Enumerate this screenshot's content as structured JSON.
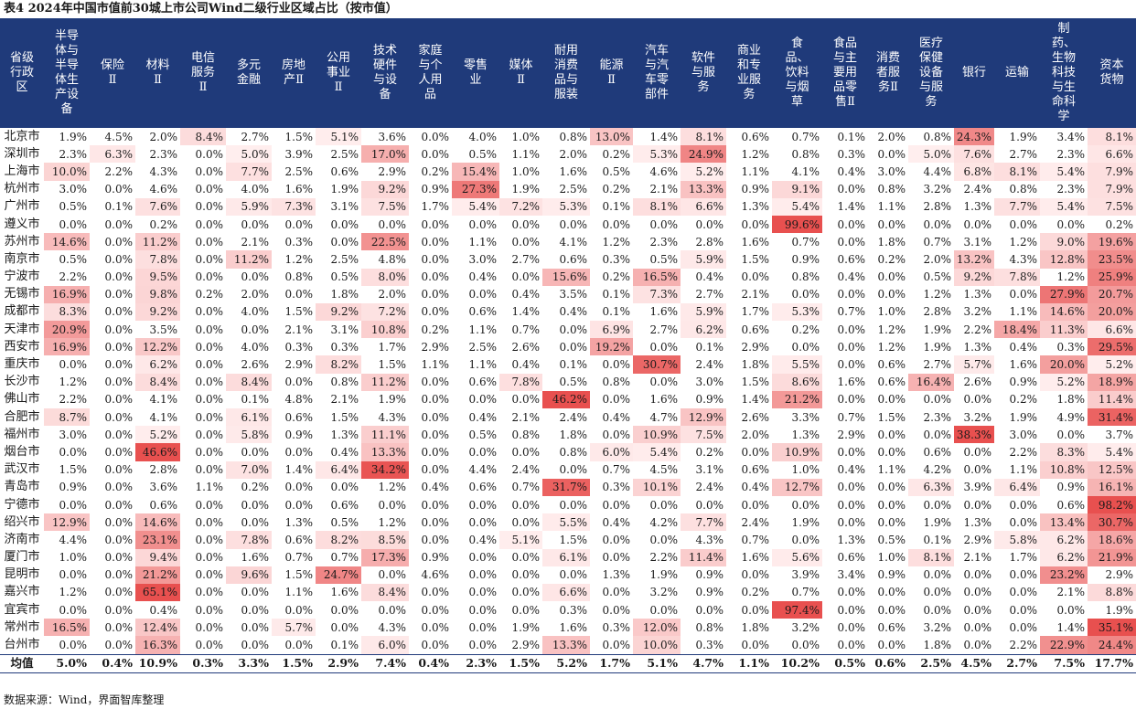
{
  "title": "表4 2024年中国市值前30城上市公司Wind二级行业区域占比（按市值）",
  "source": "数据来源：Wind，界面智库整理",
  "colors": {
    "header_bg": "#1f3a7a",
    "cell_max": "#e8504f"
  },
  "table": {
    "headers": [
      "省级行政区",
      "半导体与半导体生产设备",
      "保险Ⅱ",
      "材料Ⅱ",
      "电信服务Ⅱ",
      "多元金融",
      "房地产Ⅱ",
      "公用事业Ⅱ",
      "技术硬件与设备",
      "家庭与个人用品",
      "零售业",
      "媒体Ⅱ",
      "耐用消费品与服装",
      "能源Ⅱ",
      "汽车与汽车零部件",
      "软件与服务",
      "商业和专业服务",
      "食品、饮料与烟草",
      "食品与主要用品零售Ⅱ",
      "消费者服务Ⅱ",
      "医疗保健设备与服务",
      "银行",
      "运输",
      "制药、生物科技与生命科学",
      "资本货物"
    ],
    "rows": [
      {
        "city": "北京市",
        "values": [
          "1.9%",
          "4.5%",
          "2.0%",
          "8.4%",
          "2.7%",
          "1.5%",
          "5.1%",
          "3.6%",
          "0.0%",
          "4.0%",
          "1.0%",
          "0.8%",
          "13.0%",
          "1.4%",
          "8.1%",
          "0.6%",
          "0.7%",
          "0.1%",
          "2.0%",
          "0.8%",
          "24.3%",
          "1.9%",
          "3.4%",
          "8.1%"
        ]
      },
      {
        "city": "深圳市",
        "values": [
          "2.3%",
          "6.3%",
          "2.3%",
          "0.0%",
          "5.0%",
          "3.9%",
          "2.5%",
          "17.0%",
          "0.0%",
          "0.5%",
          "1.1%",
          "2.0%",
          "0.2%",
          "5.3%",
          "24.9%",
          "1.2%",
          "0.8%",
          "0.3%",
          "0.0%",
          "5.0%",
          "7.6%",
          "2.7%",
          "2.3%",
          "6.6%"
        ]
      },
      {
        "city": "上海市",
        "values": [
          "10.0%",
          "2.2%",
          "4.3%",
          "0.0%",
          "7.7%",
          "2.5%",
          "0.6%",
          "2.9%",
          "0.2%",
          "15.4%",
          "1.0%",
          "1.6%",
          "0.5%",
          "4.6%",
          "5.2%",
          "1.1%",
          "4.1%",
          "0.4%",
          "3.0%",
          "4.4%",
          "6.8%",
          "8.1%",
          "5.4%",
          "7.9%"
        ]
      },
      {
        "city": "杭州市",
        "values": [
          "3.0%",
          "0.0%",
          "4.6%",
          "0.0%",
          "4.0%",
          "1.6%",
          "1.9%",
          "9.2%",
          "0.9%",
          "27.3%",
          "1.9%",
          "2.5%",
          "0.2%",
          "2.1%",
          "13.3%",
          "0.9%",
          "9.1%",
          "0.0%",
          "0.8%",
          "3.2%",
          "2.4%",
          "0.8%",
          "2.3%",
          "7.9%"
        ]
      },
      {
        "city": "广州市",
        "values": [
          "0.5%",
          "0.1%",
          "7.6%",
          "0.0%",
          "5.9%",
          "7.3%",
          "3.1%",
          "7.5%",
          "1.7%",
          "5.4%",
          "7.2%",
          "5.3%",
          "0.1%",
          "8.1%",
          "6.6%",
          "1.3%",
          "5.4%",
          "1.4%",
          "1.1%",
          "2.8%",
          "1.3%",
          "7.7%",
          "5.4%",
          "7.5%"
        ]
      },
      {
        "city": "遵义市",
        "values": [
          "0.0%",
          "0.0%",
          "0.2%",
          "0.0%",
          "0.0%",
          "0.0%",
          "0.0%",
          "0.0%",
          "0.0%",
          "0.0%",
          "0.0%",
          "0.0%",
          "0.0%",
          "0.0%",
          "0.0%",
          "0.0%",
          "99.6%",
          "0.0%",
          "0.0%",
          "0.0%",
          "0.0%",
          "0.0%",
          "0.0%",
          "0.2%"
        ]
      },
      {
        "city": "苏州市",
        "values": [
          "14.6%",
          "0.0%",
          "11.2%",
          "0.0%",
          "2.1%",
          "0.3%",
          "0.0%",
          "22.5%",
          "0.0%",
          "1.1%",
          "0.0%",
          "4.1%",
          "1.2%",
          "2.3%",
          "2.8%",
          "1.6%",
          "0.7%",
          "0.0%",
          "1.8%",
          "0.7%",
          "3.1%",
          "1.2%",
          "9.0%",
          "19.6%"
        ]
      },
      {
        "city": "南京市",
        "values": [
          "0.5%",
          "0.0%",
          "7.8%",
          "0.0%",
          "11.2%",
          "1.2%",
          "2.5%",
          "4.8%",
          "0.0%",
          "3.0%",
          "2.7%",
          "0.6%",
          "0.3%",
          "0.5%",
          "5.9%",
          "1.5%",
          "0.9%",
          "0.6%",
          "0.2%",
          "2.0%",
          "13.2%",
          "4.3%",
          "12.8%",
          "23.5%"
        ]
      },
      {
        "city": "宁波市",
        "values": [
          "2.2%",
          "0.0%",
          "9.5%",
          "0.0%",
          "0.0%",
          "0.8%",
          "0.5%",
          "8.0%",
          "0.0%",
          "0.4%",
          "0.0%",
          "15.6%",
          "0.2%",
          "16.5%",
          "0.4%",
          "0.0%",
          "0.8%",
          "0.4%",
          "0.0%",
          "0.5%",
          "9.2%",
          "7.8%",
          "1.2%",
          "25.9%"
        ]
      },
      {
        "city": "无锡市",
        "values": [
          "16.9%",
          "0.0%",
          "9.8%",
          "0.2%",
          "2.0%",
          "0.0%",
          "1.8%",
          "2.0%",
          "0.0%",
          "0.0%",
          "0.4%",
          "3.5%",
          "0.1%",
          "7.3%",
          "2.7%",
          "2.1%",
          "0.0%",
          "0.0%",
          "0.0%",
          "1.2%",
          "1.3%",
          "0.0%",
          "27.9%",
          "20.7%"
        ]
      },
      {
        "city": "成都市",
        "values": [
          "8.3%",
          "0.0%",
          "9.2%",
          "0.0%",
          "4.0%",
          "1.5%",
          "9.2%",
          "7.2%",
          "0.0%",
          "0.6%",
          "1.4%",
          "0.4%",
          "0.1%",
          "1.6%",
          "5.9%",
          "1.7%",
          "5.3%",
          "0.7%",
          "1.0%",
          "2.8%",
          "3.2%",
          "1.1%",
          "14.6%",
          "20.0%"
        ]
      },
      {
        "city": "天津市",
        "values": [
          "20.9%",
          "0.0%",
          "3.5%",
          "0.0%",
          "0.0%",
          "2.1%",
          "3.1%",
          "10.8%",
          "0.2%",
          "1.1%",
          "0.7%",
          "0.0%",
          "6.9%",
          "2.7%",
          "6.2%",
          "0.6%",
          "0.2%",
          "0.0%",
          "1.2%",
          "1.9%",
          "2.2%",
          "18.4%",
          "11.3%",
          "6.6%"
        ]
      },
      {
        "city": "西安市",
        "values": [
          "16.9%",
          "0.0%",
          "12.2%",
          "0.0%",
          "4.0%",
          "0.3%",
          "0.3%",
          "1.7%",
          "2.9%",
          "2.5%",
          "2.6%",
          "0.0%",
          "19.2%",
          "0.0%",
          "0.1%",
          "2.9%",
          "0.0%",
          "0.0%",
          "1.2%",
          "1.9%",
          "1.3%",
          "0.4%",
          "0.3%",
          "29.5%"
        ]
      },
      {
        "city": "重庆市",
        "values": [
          "0.0%",
          "0.0%",
          "6.2%",
          "0.0%",
          "2.6%",
          "2.9%",
          "8.2%",
          "1.5%",
          "1.1%",
          "1.1%",
          "0.4%",
          "0.1%",
          "0.0%",
          "30.7%",
          "2.4%",
          "1.8%",
          "5.5%",
          "0.0%",
          "0.6%",
          "2.7%",
          "5.7%",
          "1.6%",
          "20.0%",
          "5.2%"
        ]
      },
      {
        "city": "长沙市",
        "values": [
          "1.2%",
          "0.0%",
          "8.4%",
          "0.0%",
          "8.4%",
          "0.0%",
          "0.8%",
          "11.2%",
          "0.0%",
          "0.6%",
          "7.8%",
          "0.5%",
          "0.8%",
          "0.0%",
          "3.0%",
          "1.5%",
          "8.6%",
          "1.6%",
          "0.6%",
          "16.4%",
          "2.6%",
          "0.9%",
          "5.2%",
          "18.9%"
        ]
      },
      {
        "city": "佛山市",
        "values": [
          "2.2%",
          "0.0%",
          "4.1%",
          "0.0%",
          "0.1%",
          "4.8%",
          "2.1%",
          "1.9%",
          "0.0%",
          "0.0%",
          "0.0%",
          "46.2%",
          "0.0%",
          "1.6%",
          "0.9%",
          "1.4%",
          "21.2%",
          "0.0%",
          "0.0%",
          "0.0%",
          "0.0%",
          "0.2%",
          "1.8%",
          "11.4%"
        ]
      },
      {
        "city": "合肥市",
        "values": [
          "8.7%",
          "0.0%",
          "4.1%",
          "0.0%",
          "6.1%",
          "0.6%",
          "1.5%",
          "4.3%",
          "0.0%",
          "0.4%",
          "2.1%",
          "2.4%",
          "0.4%",
          "4.7%",
          "12.9%",
          "2.6%",
          "3.3%",
          "0.7%",
          "1.5%",
          "2.3%",
          "3.2%",
          "1.9%",
          "4.9%",
          "31.4%"
        ]
      },
      {
        "city": "福州市",
        "values": [
          "3.0%",
          "0.0%",
          "5.2%",
          "0.0%",
          "5.8%",
          "0.9%",
          "1.3%",
          "11.1%",
          "0.0%",
          "0.5%",
          "0.8%",
          "1.8%",
          "0.0%",
          "10.9%",
          "7.5%",
          "2.0%",
          "1.3%",
          "2.9%",
          "0.0%",
          "0.0%",
          "38.3%",
          "3.0%",
          "0.0%",
          "3.7%"
        ]
      },
      {
        "city": "烟台市",
        "values": [
          "0.0%",
          "0.0%",
          "46.6%",
          "0.0%",
          "0.0%",
          "0.0%",
          "0.4%",
          "13.3%",
          "0.0%",
          "0.0%",
          "0.0%",
          "0.8%",
          "6.0%",
          "5.4%",
          "0.2%",
          "0.0%",
          "10.9%",
          "0.0%",
          "0.0%",
          "0.6%",
          "0.0%",
          "2.2%",
          "8.3%",
          "5.4%"
        ]
      },
      {
        "city": "武汉市",
        "values": [
          "1.5%",
          "0.0%",
          "2.8%",
          "0.0%",
          "7.0%",
          "1.4%",
          "6.4%",
          "34.2%",
          "0.0%",
          "4.4%",
          "2.4%",
          "0.0%",
          "0.7%",
          "4.5%",
          "3.1%",
          "0.6%",
          "1.0%",
          "0.4%",
          "1.1%",
          "4.2%",
          "0.0%",
          "1.1%",
          "10.8%",
          "12.5%"
        ]
      },
      {
        "city": "青岛市",
        "values": [
          "0.9%",
          "0.0%",
          "3.6%",
          "1.1%",
          "0.2%",
          "0.0%",
          "0.0%",
          "1.2%",
          "0.4%",
          "0.6%",
          "0.7%",
          "31.7%",
          "0.3%",
          "10.1%",
          "2.4%",
          "0.4%",
          "12.7%",
          "0.0%",
          "0.0%",
          "6.3%",
          "3.9%",
          "6.4%",
          "0.9%",
          "16.1%"
        ]
      },
      {
        "city": "宁德市",
        "values": [
          "0.0%",
          "0.0%",
          "0.6%",
          "0.0%",
          "0.0%",
          "0.0%",
          "0.6%",
          "0.0%",
          "0.0%",
          "0.0%",
          "0.0%",
          "0.0%",
          "0.0%",
          "0.0%",
          "0.0%",
          "0.0%",
          "0.0%",
          "0.0%",
          "0.0%",
          "0.0%",
          "0.0%",
          "0.0%",
          "0.6%",
          "98.2%"
        ]
      },
      {
        "city": "绍兴市",
        "values": [
          "12.9%",
          "0.0%",
          "14.6%",
          "0.0%",
          "0.0%",
          "1.3%",
          "0.5%",
          "1.2%",
          "0.0%",
          "0.0%",
          "0.0%",
          "5.5%",
          "0.4%",
          "4.2%",
          "7.7%",
          "2.4%",
          "1.9%",
          "0.0%",
          "0.0%",
          "1.9%",
          "1.3%",
          "0.0%",
          "13.4%",
          "30.7%"
        ]
      },
      {
        "city": "济南市",
        "values": [
          "4.4%",
          "0.0%",
          "23.1%",
          "0.0%",
          "7.8%",
          "0.6%",
          "8.2%",
          "8.5%",
          "0.0%",
          "0.4%",
          "5.1%",
          "1.5%",
          "0.0%",
          "0.0%",
          "4.3%",
          "0.7%",
          "0.0%",
          "1.3%",
          "0.5%",
          "0.1%",
          "2.9%",
          "5.8%",
          "6.2%",
          "18.6%"
        ]
      },
      {
        "city": "厦门市",
        "values": [
          "1.0%",
          "0.0%",
          "9.4%",
          "0.0%",
          "1.6%",
          "0.7%",
          "0.7%",
          "17.3%",
          "0.9%",
          "0.0%",
          "0.0%",
          "6.1%",
          "0.0%",
          "2.2%",
          "11.4%",
          "1.6%",
          "5.6%",
          "0.6%",
          "1.0%",
          "8.1%",
          "2.1%",
          "1.7%",
          "6.2%",
          "21.9%"
        ]
      },
      {
        "city": "昆明市",
        "values": [
          "0.0%",
          "0.0%",
          "21.2%",
          "0.0%",
          "9.6%",
          "1.5%",
          "24.7%",
          "0.0%",
          "4.6%",
          "0.0%",
          "0.0%",
          "0.0%",
          "1.3%",
          "1.9%",
          "0.9%",
          "0.0%",
          "3.9%",
          "3.4%",
          "0.9%",
          "0.0%",
          "0.0%",
          "0.0%",
          "23.2%",
          "2.9%"
        ]
      },
      {
        "city": "嘉兴市",
        "values": [
          "1.2%",
          "0.0%",
          "65.1%",
          "0.0%",
          "0.0%",
          "1.1%",
          "1.6%",
          "8.4%",
          "0.0%",
          "0.0%",
          "0.0%",
          "6.6%",
          "0.0%",
          "3.2%",
          "0.9%",
          "0.2%",
          "0.7%",
          "0.0%",
          "0.0%",
          "0.0%",
          "0.0%",
          "0.0%",
          "2.1%",
          "8.8%"
        ]
      },
      {
        "city": "宜宾市",
        "values": [
          "0.0%",
          "0.0%",
          "0.4%",
          "0.0%",
          "0.0%",
          "0.0%",
          "0.0%",
          "0.0%",
          "0.0%",
          "0.0%",
          "0.0%",
          "0.3%",
          "0.0%",
          "0.0%",
          "0.0%",
          "0.0%",
          "97.4%",
          "0.0%",
          "0.0%",
          "0.0%",
          "0.0%",
          "0.0%",
          "0.0%",
          "1.9%"
        ]
      },
      {
        "city": "常州市",
        "values": [
          "16.5%",
          "0.0%",
          "12.4%",
          "0.0%",
          "0.0%",
          "5.7%",
          "0.0%",
          "4.3%",
          "0.0%",
          "0.0%",
          "1.9%",
          "1.6%",
          "0.3%",
          "12.0%",
          "0.8%",
          "1.8%",
          "3.2%",
          "0.0%",
          "0.6%",
          "3.2%",
          "0.0%",
          "0.0%",
          "1.4%",
          "35.1%"
        ]
      },
      {
        "city": "台州市",
        "values": [
          "0.0%",
          "0.0%",
          "16.3%",
          "0.0%",
          "0.0%",
          "0.0%",
          "0.1%",
          "6.0%",
          "0.0%",
          "0.0%",
          "2.9%",
          "13.3%",
          "0.0%",
          "10.0%",
          "0.3%",
          "0.0%",
          "0.0%",
          "0.0%",
          "0.0%",
          "1.8%",
          "0.0%",
          "2.2%",
          "22.9%",
          "24.4%"
        ]
      }
    ],
    "average": {
      "label": "均值",
      "values": [
        "5.0%",
        "0.4%",
        "10.9%",
        "0.3%",
        "3.3%",
        "1.5%",
        "2.9%",
        "7.4%",
        "0.4%",
        "2.3%",
        "1.5%",
        "5.2%",
        "1.7%",
        "5.1%",
        "4.7%",
        "1.1%",
        "10.2%",
        "0.5%",
        "0.6%",
        "2.5%",
        "4.5%",
        "2.7%",
        "7.5%",
        "17.7%"
      ]
    }
  }
}
